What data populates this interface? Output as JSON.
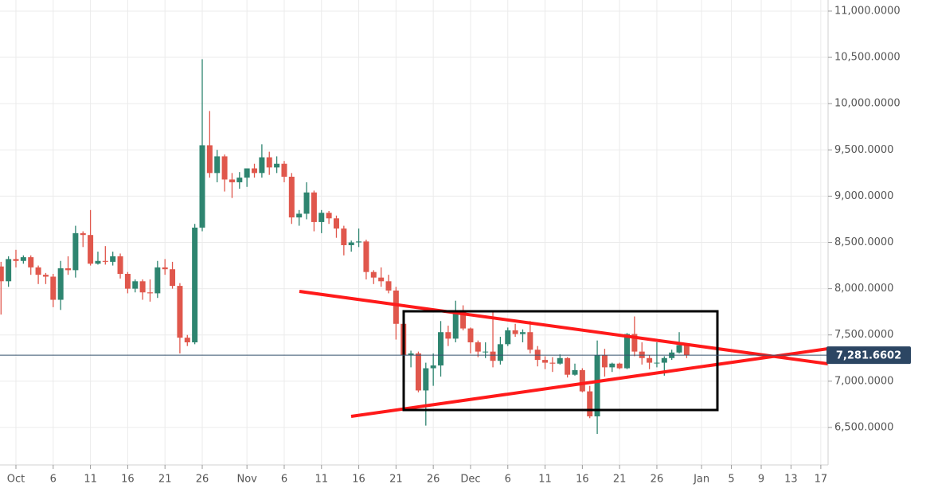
{
  "chart_data": {
    "type": "candlestick",
    "x": [
      "09-29",
      "09-30",
      "10-01",
      "10-02",
      "10-03",
      "10-04",
      "10-05",
      "10-06",
      "10-07",
      "10-08",
      "10-09",
      "10-10",
      "10-11",
      "10-12",
      "10-13",
      "10-14",
      "10-15",
      "10-16",
      "10-17",
      "10-18",
      "10-19",
      "10-20",
      "10-21",
      "10-22",
      "10-23",
      "10-24",
      "10-25",
      "10-26",
      "10-27",
      "10-28",
      "10-29",
      "10-30",
      "10-31",
      "11-01",
      "11-02",
      "11-03",
      "11-04",
      "11-05",
      "11-06",
      "11-07",
      "11-08",
      "11-09",
      "11-10",
      "11-11",
      "11-12",
      "11-13",
      "11-14",
      "11-15",
      "11-16",
      "11-17",
      "11-18",
      "11-19",
      "11-20",
      "11-21",
      "11-22",
      "11-23",
      "11-24",
      "11-25",
      "11-26",
      "11-27",
      "11-28",
      "11-29",
      "11-30",
      "12-01",
      "12-02",
      "12-03",
      "12-04",
      "12-05",
      "12-06",
      "12-07",
      "12-08",
      "12-09",
      "12-10",
      "12-11",
      "12-12",
      "12-13",
      "12-14",
      "12-15",
      "12-16",
      "12-17",
      "12-18",
      "12-19",
      "12-20",
      "12-21",
      "12-22",
      "12-23",
      "12-24",
      "12-25",
      "12-26",
      "12-27",
      "12-28",
      "12-29",
      "12-30"
    ],
    "open": [
      8240,
      8080,
      8320,
      8300,
      8340,
      8230,
      8150,
      8130,
      7880,
      8220,
      8200,
      8600,
      8580,
      8270,
      8300,
      8290,
      8350,
      8160,
      8000,
      8080,
      7960,
      7950,
      8230,
      8210,
      8030,
      7470,
      7420,
      8660,
      9550,
      9250,
      9430,
      9180,
      9150,
      9200,
      9300,
      9250,
      9420,
      9310,
      9350,
      9210,
      8770,
      8810,
      9040,
      8720,
      8820,
      8760,
      8650,
      8470,
      8500,
      8510,
      8180,
      8120,
      8080,
      7980,
      7620,
      7280,
      7300,
      6900,
      7140,
      7170,
      7530,
      7460,
      7760,
      7570,
      7420,
      7320,
      7320,
      7220,
      7400,
      7550,
      7510,
      7530,
      7340,
      7230,
      7200,
      7190,
      7250,
      7070,
      7120,
      6890,
      6620,
      7280,
      7150,
      7190,
      7140,
      7510,
      7320,
      7250,
      7200,
      7200,
      7250,
      7310,
      7390
    ],
    "high": [
      8290,
      8350,
      8420,
      8360,
      8360,
      8250,
      8170,
      8160,
      8300,
      8350,
      8680,
      8620,
      8850,
      8400,
      8460,
      8400,
      8380,
      8180,
      8100,
      8100,
      8100,
      8300,
      8320,
      8290,
      8060,
      7500,
      8700,
      10480,
      9920,
      9500,
      9450,
      9250,
      9260,
      9300,
      9350,
      9560,
      9480,
      9430,
      9380,
      9250,
      8850,
      9150,
      9060,
      8850,
      8840,
      8790,
      8680,
      8520,
      8650,
      8530,
      8200,
      8230,
      8150,
      8020,
      7700,
      7330,
      7320,
      7200,
      7300,
      7650,
      7600,
      7870,
      7820,
      7580,
      7440,
      7420,
      7750,
      7480,
      7580,
      7620,
      7560,
      7650,
      7380,
      7270,
      7260,
      7290,
      7260,
      7190,
      7140,
      6950,
      7440,
      7350,
      7200,
      7200,
      7520,
      7700,
      7420,
      7280,
      7420,
      7270,
      7340,
      7530,
      7400
    ],
    "low": [
      7720,
      8020,
      8230,
      8270,
      8150,
      8050,
      8050,
      7800,
      7770,
      8150,
      8120,
      8450,
      8250,
      8260,
      8260,
      8250,
      8110,
      7950,
      7960,
      7880,
      7860,
      7900,
      8150,
      8000,
      7300,
      7380,
      7400,
      8620,
      9200,
      9150,
      9050,
      8980,
      9080,
      9100,
      9200,
      9200,
      9230,
      9250,
      9150,
      8700,
      8680,
      8750,
      8620,
      8600,
      8700,
      8550,
      8360,
      8400,
      8450,
      8100,
      8050,
      8020,
      7950,
      7450,
      7250,
      7150,
      6880,
      6520,
      6950,
      7050,
      7380,
      7420,
      7550,
      7300,
      7260,
      7250,
      7150,
      7180,
      7380,
      7480,
      7420,
      7300,
      7160,
      7130,
      7100,
      7180,
      7040,
      7060,
      6880,
      6600,
      6430,
      7050,
      7100,
      7130,
      7130,
      7270,
      7180,
      7130,
      7150,
      7060,
      7230,
      7300,
      7250
    ],
    "close": [
      8080,
      8320,
      8300,
      8340,
      8230,
      8150,
      8130,
      7880,
      8220,
      8200,
      8600,
      8580,
      8270,
      8300,
      8290,
      8350,
      8160,
      8000,
      8080,
      7960,
      7950,
      8230,
      8210,
      8030,
      7470,
      7420,
      8660,
      9550,
      9250,
      9430,
      9180,
      9150,
      9200,
      9300,
      9250,
      9420,
      9310,
      9350,
      9210,
      8770,
      8810,
      9040,
      8720,
      8820,
      8760,
      8650,
      8470,
      8500,
      8510,
      8180,
      8120,
      8080,
      7980,
      7620,
      7280,
      7300,
      6900,
      7140,
      7170,
      7530,
      7460,
      7760,
      7570,
      7420,
      7320,
      7320,
      7220,
      7400,
      7550,
      7510,
      7530,
      7340,
      7230,
      7200,
      7190,
      7250,
      7070,
      7120,
      6890,
      6620,
      7280,
      7150,
      7190,
      7140,
      7510,
      7320,
      7250,
      7200,
      7200,
      7250,
      7310,
      7390,
      7281.6602
    ],
    "up_color": "#2e8570",
    "down_color": "#e0574c",
    "ylim": [
      6095,
      11120
    ],
    "yticks": [
      {
        "value": 6500,
        "label": "6,500.0000"
      },
      {
        "value": 7000,
        "label": "7,000.0000"
      },
      {
        "value": 7500,
        "label": "7,500.0000"
      },
      {
        "value": 8000,
        "label": "8,000.0000"
      },
      {
        "value": 8500,
        "label": "8,500.0000"
      },
      {
        "value": 9000,
        "label": "9,000.0000"
      },
      {
        "value": 9500,
        "label": "9,500.0000"
      },
      {
        "value": 10000,
        "label": "10,000.0000"
      },
      {
        "value": 10500,
        "label": "10,500.0000"
      },
      {
        "value": 11000,
        "label": "11,000.0000"
      }
    ],
    "xticks": [
      {
        "value": "10-01",
        "label": "Oct"
      },
      {
        "value": "10-06",
        "label": "6"
      },
      {
        "value": "10-11",
        "label": "11"
      },
      {
        "value": "10-16",
        "label": "16"
      },
      {
        "value": "10-21",
        "label": "21"
      },
      {
        "value": "10-26",
        "label": "26"
      },
      {
        "value": "11-01",
        "label": "Nov"
      },
      {
        "value": "11-06",
        "label": "6"
      },
      {
        "value": "11-11",
        "label": "11"
      },
      {
        "value": "11-16",
        "label": "16"
      },
      {
        "value": "11-21",
        "label": "21"
      },
      {
        "value": "11-26",
        "label": "26"
      },
      {
        "value": "12-01",
        "label": "Dec"
      },
      {
        "value": "12-06",
        "label": "6"
      },
      {
        "value": "12-11",
        "label": "11"
      },
      {
        "value": "12-16",
        "label": "16"
      },
      {
        "value": "12-21",
        "label": "21"
      },
      {
        "value": "12-26",
        "label": "26"
      },
      {
        "value": "01-01",
        "label": "Jan"
      },
      {
        "value": "01-05",
        "label": "5"
      },
      {
        "value": "01-09",
        "label": "9"
      },
      {
        "value": "01-13",
        "label": "13"
      },
      {
        "value": "01-17",
        "label": "17"
      }
    ],
    "grid": true,
    "price_line": {
      "value": 7281.6602,
      "label": "7,281.6602"
    }
  }
}
